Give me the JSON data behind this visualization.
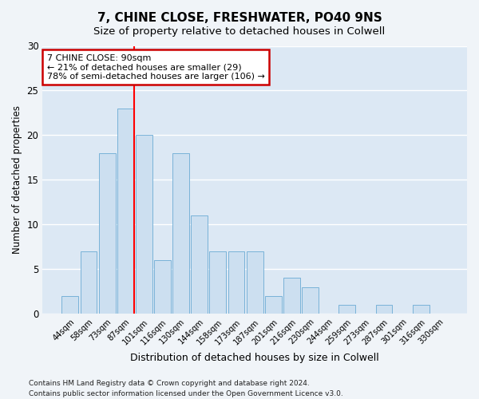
{
  "title1": "7, CHINE CLOSE, FRESHWATER, PO40 9NS",
  "title2": "Size of property relative to detached houses in Colwell",
  "xlabel": "Distribution of detached houses by size in Colwell",
  "ylabel": "Number of detached properties",
  "bar_labels": [
    "44sqm",
    "58sqm",
    "73sqm",
    "87sqm",
    "101sqm",
    "116sqm",
    "130sqm",
    "144sqm",
    "158sqm",
    "173sqm",
    "187sqm",
    "201sqm",
    "216sqm",
    "230sqm",
    "244sqm",
    "259sqm",
    "273sqm",
    "287sqm",
    "301sqm",
    "316sqm",
    "330sqm"
  ],
  "bar_values": [
    2,
    7,
    18,
    23,
    20,
    6,
    18,
    11,
    7,
    7,
    7,
    2,
    4,
    3,
    0,
    1,
    0,
    1,
    0,
    1,
    0
  ],
  "bar_color": "#ccdff0",
  "bar_edge_color": "#6aaad4",
  "background_color": "#e8f0f8",
  "plot_bg_color": "#dce8f4",
  "grid_color": "#ffffff",
  "red_line_index": 3,
  "annotation_text": "7 CHINE CLOSE: 90sqm\n← 21% of detached houses are smaller (29)\n78% of semi-detached houses are larger (106) →",
  "annotation_box_facecolor": "#ffffff",
  "annotation_box_edgecolor": "#cc0000",
  "ylim": [
    0,
    30
  ],
  "yticks": [
    0,
    5,
    10,
    15,
    20,
    25,
    30
  ],
  "footnote1": "Contains HM Land Registry data © Crown copyright and database right 2024.",
  "footnote2": "Contains public sector information licensed under the Open Government Licence v3.0."
}
